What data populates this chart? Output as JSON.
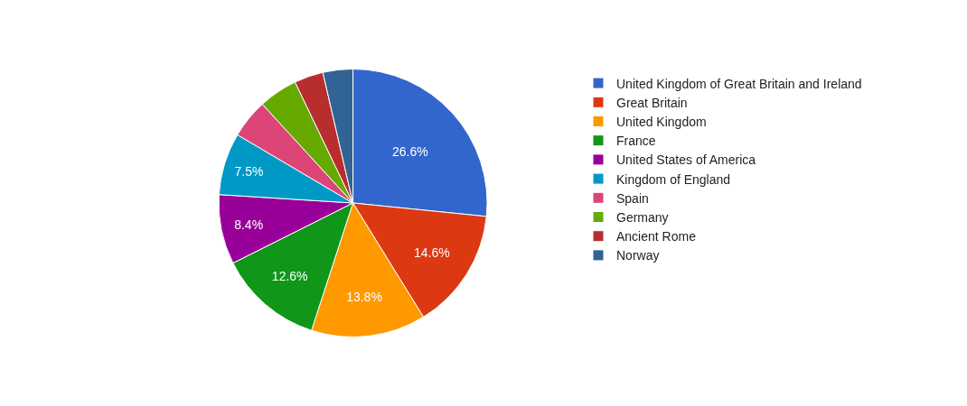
{
  "chart_data": {
    "type": "pie",
    "categories": [
      "United Kingdom of Great Britain and Ireland",
      "Great Britain",
      "United Kingdom",
      "France",
      "United States of America",
      "Kingdom of England",
      "Spain",
      "Germany",
      "Ancient Rome",
      "Norway"
    ],
    "values": [
      26.6,
      14.6,
      13.8,
      12.6,
      8.4,
      7.5,
      4.7,
      4.7,
      3.5,
      3.6
    ],
    "value_labels": [
      "26.6%",
      "14.6%",
      "13.8%",
      "12.6%",
      "8.4%",
      "7.5%",
      null,
      null,
      null,
      null
    ],
    "colors": [
      "#3366cc",
      "#dc3912",
      "#ff9900",
      "#109618",
      "#990099",
      "#0099c6",
      "#dd4477",
      "#66aa00",
      "#b82e2e",
      "#316395"
    ],
    "legend": "right"
  }
}
